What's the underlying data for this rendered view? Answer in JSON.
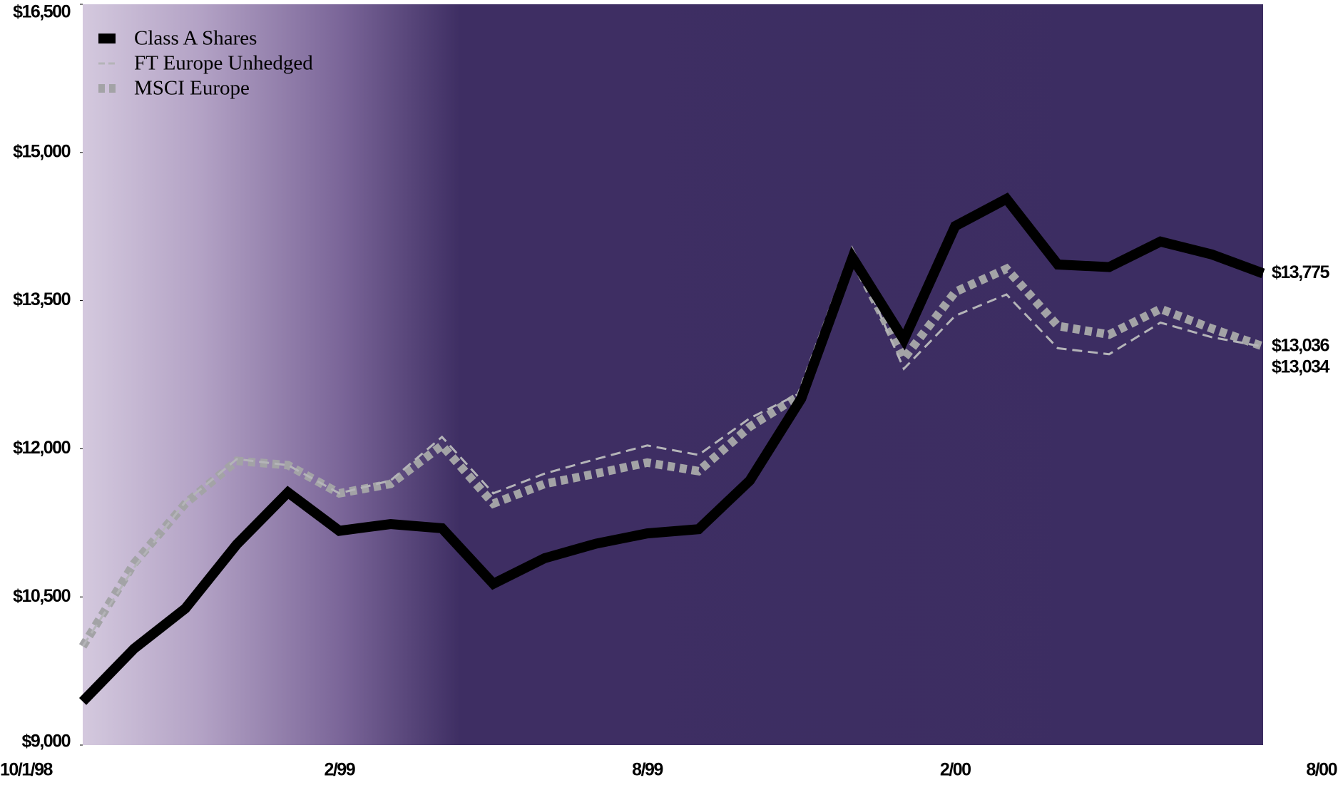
{
  "chart_data": {
    "type": "line",
    "categories": [
      "10/1/98",
      null,
      null,
      null,
      null,
      "2/99",
      null,
      null,
      null,
      null,
      null,
      "8/99",
      null,
      null,
      null,
      null,
      null,
      "2/00",
      null,
      null,
      null,
      null,
      null,
      "8/00"
    ],
    "series": [
      {
        "name": "Class A Shares",
        "color": "#000000",
        "style": "solid",
        "values": [
          9441,
          9976,
          10383,
          11031,
          11558,
          11169,
          11238,
          11195,
          10633,
          10892,
          11039,
          11143,
          11186,
          11679,
          12508,
          13934,
          13104,
          14254,
          14530,
          13865,
          13839,
          14098,
          13968,
          13775
        ],
        "value_labels": [
          null,
          null,
          null,
          null,
          null,
          null,
          null,
          null,
          null,
          null,
          null,
          null,
          null,
          null,
          null,
          null,
          null,
          null,
          null,
          null,
          null,
          null,
          null,
          "$13,775"
        ]
      },
      {
        "name": "FT Europe Unhedged",
        "color": "#b4b4b8",
        "style": "dashed",
        "values": [
          10000,
          10797,
          11463,
          11895,
          11834,
          11549,
          11679,
          12120,
          11549,
          11748,
          11895,
          12033,
          11938,
          12310,
          12568,
          13994,
          12810,
          13346,
          13562,
          13018,
          12957,
          13277,
          13130,
          13034
        ],
        "value_labels": [
          null,
          null,
          null,
          null,
          null,
          null,
          null,
          null,
          null,
          null,
          null,
          null,
          null,
          null,
          null,
          null,
          null,
          null,
          null,
          null,
          null,
          null,
          null,
          "$13,034"
        ]
      },
      {
        "name": "MSCI Europe",
        "color": "#a3a3a6",
        "style": "dotted",
        "values": [
          10000,
          10840,
          11445,
          11877,
          11834,
          11549,
          11644,
          12033,
          11445,
          11644,
          11748,
          11860,
          11773,
          12224,
          12551,
          13951,
          12913,
          13588,
          13822,
          13243,
          13156,
          13416,
          13217,
          13036
        ],
        "value_labels": [
          null,
          null,
          null,
          null,
          null,
          null,
          null,
          null,
          null,
          null,
          null,
          null,
          null,
          null,
          null,
          null,
          null,
          null,
          null,
          null,
          null,
          null,
          null,
          "$13,036"
        ]
      }
    ],
    "ylim": [
      9000,
      16500
    ],
    "yticks": [
      {
        "value": 9000,
        "label": "$9,000"
      },
      {
        "value": 10500,
        "label": "$10,500"
      },
      {
        "value": 12000,
        "label": "$12,000"
      },
      {
        "value": 13500,
        "label": "$13,500"
      },
      {
        "value": 15000,
        "label": "$15,000"
      },
      {
        "value": 16500,
        "label": "$16,500"
      }
    ],
    "legend": "upper left",
    "grid": false
  }
}
